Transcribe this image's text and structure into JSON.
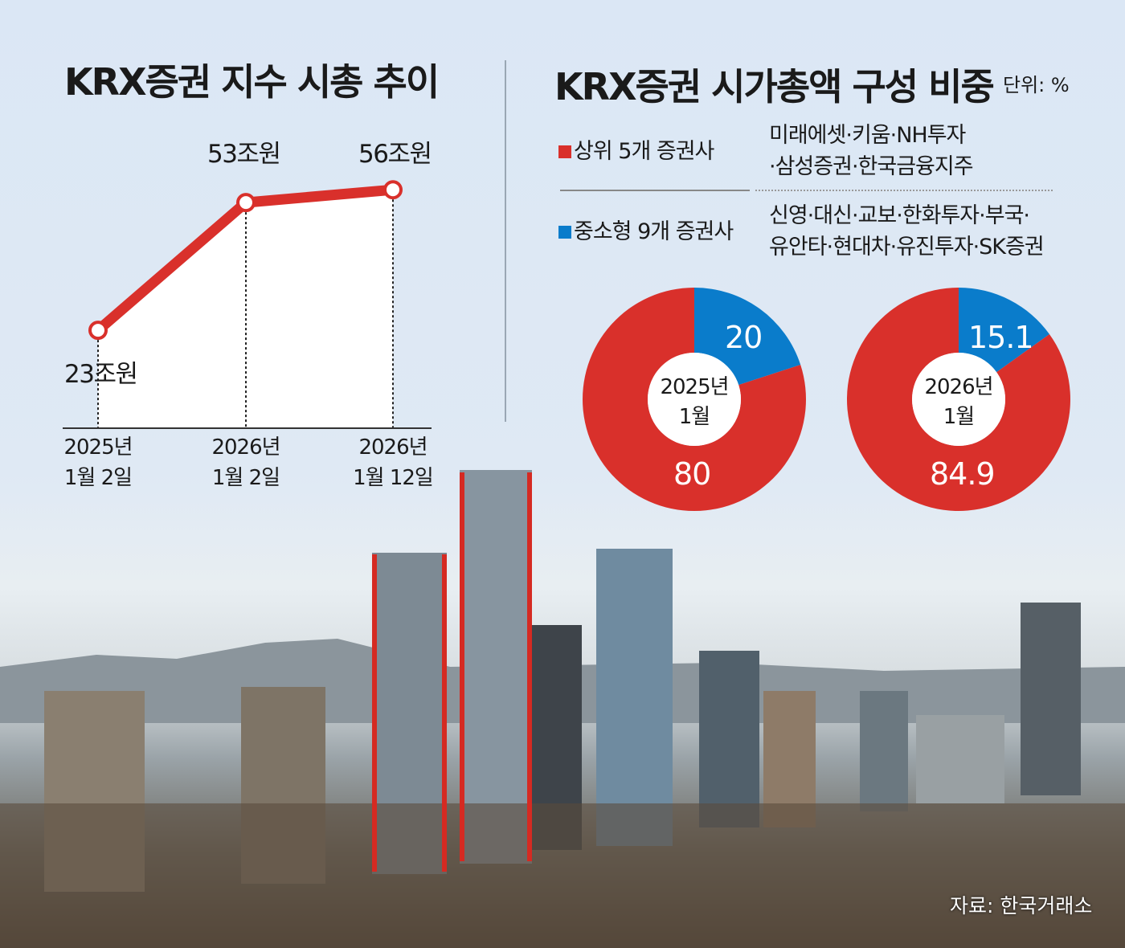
{
  "left": {
    "title": "KRX증권 지수 시총 추이"
  },
  "right": {
    "title": "KRX증권 시가총액 구성 비중",
    "unit": "단위: %",
    "legend": [
      {
        "label": "상위 5개 증권사",
        "color": "#d9302b",
        "members": [
          "미래에셋·키움·NH투자",
          "·삼성증권·한국금융지주"
        ]
      },
      {
        "label": "중소형 9개 증권사",
        "color": "#0a7ccb",
        "members": [
          "신영·대신·교보·한화투자·부국·",
          "유안타·현대차·유진투자·SK증권"
        ]
      }
    ]
  },
  "source": "자료: 한국거래소",
  "chart_data": [
    {
      "type": "line",
      "title": "KRX증권 지수 시총 추이",
      "x": [
        [
          "2025년",
          "1월 2일"
        ],
        [
          "2026년",
          "1월 2일"
        ],
        [
          "2026년",
          "1월 12일"
        ]
      ],
      "values": [
        23,
        53,
        56
      ],
      "data_labels": [
        "23조원",
        "53조원",
        "56조원"
      ],
      "unit": "조원",
      "color": "#d9302b"
    },
    {
      "type": "pie",
      "variant": "donut",
      "title": "2025년 1월",
      "center_label": [
        "2025년",
        "1월"
      ],
      "slices": [
        {
          "name": "상위 5개 증권사",
          "value": 80,
          "label": "80"
        },
        {
          "name": "중소형 9개 증권사",
          "value": 20,
          "label": "20"
        }
      ]
    },
    {
      "type": "pie",
      "variant": "donut",
      "title": "2026년 1월",
      "center_label": [
        "2026년",
        "1월"
      ],
      "slices": [
        {
          "name": "상위 5개 증권사",
          "value": 84.9,
          "label": "84.9"
        },
        {
          "name": "중소형 9개 증권사",
          "value": 15.1,
          "label": "15.1"
        }
      ]
    }
  ]
}
